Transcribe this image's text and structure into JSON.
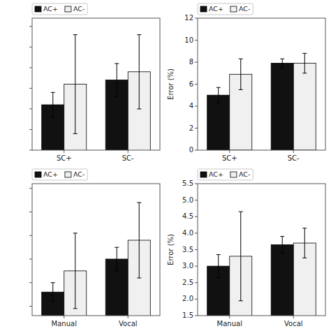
{
  "chart_data": [
    {
      "type": "bar",
      "categories": [
        "SC+",
        "SC-"
      ],
      "series": [
        {
          "name": "AC+",
          "color": "#111111",
          "values": [
            560,
            620
          ],
          "errors": [
            30,
            40
          ]
        },
        {
          "name": "AC-",
          "color": "#f0f0f0",
          "values": [
            610,
            640
          ],
          "errors": [
            120,
            90
          ]
        }
      ],
      "ylim": [
        450,
        770
      ],
      "yticks": [
        450,
        500,
        550,
        600,
        650,
        700,
        750
      ],
      "tick_labels": "x",
      "legend": "upper left"
    },
    {
      "type": "bar",
      "categories": [
        "SC+",
        "SC-"
      ],
      "series": [
        {
          "name": "AC+",
          "color": "#111111",
          "values": [
            5.0,
            7.9
          ],
          "errors": [
            0.7,
            0.4
          ]
        },
        {
          "name": "AC-",
          "color": "#f0f0f0",
          "values": [
            6.9,
            7.9
          ],
          "errors": [
            1.4,
            0.9
          ]
        }
      ],
      "ylabel": "Error (%)",
      "ylim": [
        0,
        12
      ],
      "yticks": [
        0,
        2,
        4,
        6,
        8,
        10,
        12
      ],
      "legend": "upper left"
    },
    {
      "type": "bar",
      "categories": [
        "Manual",
        "Vocal"
      ],
      "series": [
        {
          "name": "AC+",
          "color": "#111111",
          "values": [
            530,
            600
          ],
          "errors": [
            20,
            25
          ]
        },
        {
          "name": "AC-",
          "color": "#f0f0f0",
          "values": [
            575,
            640
          ],
          "errors": [
            80,
            80
          ]
        }
      ],
      "ylim": [
        480,
        760
      ],
      "yticks": [
        500,
        550,
        600,
        650,
        700,
        750
      ],
      "tick_labels": "x",
      "legend": "upper left"
    },
    {
      "type": "bar",
      "categories": [
        "Manual",
        "Vocal"
      ],
      "series": [
        {
          "name": "AC+",
          "color": "#111111",
          "values": [
            3.0,
            3.65
          ],
          "errors": [
            0.35,
            0.25
          ]
        },
        {
          "name": "AC-",
          "color": "#f0f0f0",
          "values": [
            3.3,
            3.7
          ],
          "errors": [
            1.35,
            0.45
          ]
        }
      ],
      "ylabel": "Error (%)",
      "ylim": [
        1.5,
        5.5
      ],
      "yticks": [
        1.5,
        {
          "value": 2.0,
          "label": "2.0"
        },
        2.5,
        {
          "value": 3.0,
          "label": "3.0"
        },
        3.5,
        {
          "value": 4.0,
          "label": "4.0"
        },
        4.5,
        {
          "value": 5.0,
          "label": "5.0"
        },
        5.5
      ],
      "legend": "upper left"
    }
  ]
}
